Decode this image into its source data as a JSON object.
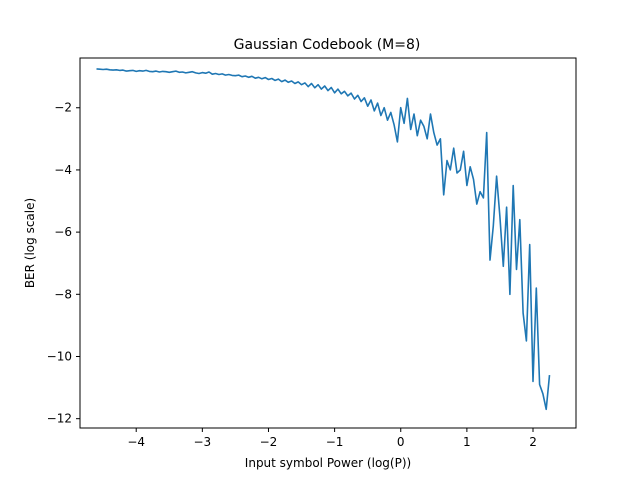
{
  "chart_data": {
    "type": "line",
    "title": "Gaussian Codebook (M=8)",
    "xlabel": "Input symbol Power (log(P))",
    "ylabel": "BER (log scale)",
    "xlim": [
      -4.85,
      2.65
    ],
    "ylim": [
      -12.3,
      -0.4
    ],
    "xticks": [
      -4,
      -3,
      -2,
      -1,
      0,
      1,
      2
    ],
    "xtick_labels": [
      "−4",
      "−3",
      "−2",
      "−1",
      "0",
      "1",
      "2"
    ],
    "yticks": [
      -12,
      -10,
      -8,
      -6,
      -4,
      -2
    ],
    "ytick_labels": [
      "−12",
      "−10",
      "−8",
      "−6",
      "−4",
      "−2"
    ],
    "grid": false,
    "colors": {
      "series": "#1f77b4"
    },
    "series": [
      {
        "points": [
          [
            -4.6,
            -0.75
          ],
          [
            -4.55,
            -0.76
          ],
          [
            -4.5,
            -0.77
          ],
          [
            -4.45,
            -0.76
          ],
          [
            -4.4,
            -0.78
          ],
          [
            -4.35,
            -0.79
          ],
          [
            -4.3,
            -0.78
          ],
          [
            -4.25,
            -0.8
          ],
          [
            -4.2,
            -0.79
          ],
          [
            -4.15,
            -0.82
          ],
          [
            -4.1,
            -0.81
          ],
          [
            -4.05,
            -0.8
          ],
          [
            -4.0,
            -0.83
          ],
          [
            -3.95,
            -0.81
          ],
          [
            -3.9,
            -0.82
          ],
          [
            -3.85,
            -0.8
          ],
          [
            -3.8,
            -0.83
          ],
          [
            -3.75,
            -0.84
          ],
          [
            -3.7,
            -0.82
          ],
          [
            -3.65,
            -0.85
          ],
          [
            -3.6,
            -0.83
          ],
          [
            -3.55,
            -0.84
          ],
          [
            -3.5,
            -0.86
          ],
          [
            -3.45,
            -0.84
          ],
          [
            -3.4,
            -0.82
          ],
          [
            -3.35,
            -0.86
          ],
          [
            -3.3,
            -0.85
          ],
          [
            -3.25,
            -0.88
          ],
          [
            -3.2,
            -0.86
          ],
          [
            -3.15,
            -0.84
          ],
          [
            -3.1,
            -0.88
          ],
          [
            -3.05,
            -0.9
          ],
          [
            -3.0,
            -0.87
          ],
          [
            -2.95,
            -0.89
          ],
          [
            -2.9,
            -0.85
          ],
          [
            -2.85,
            -0.92
          ],
          [
            -2.8,
            -0.9
          ],
          [
            -2.75,
            -0.93
          ],
          [
            -2.7,
            -0.91
          ],
          [
            -2.65,
            -0.95
          ],
          [
            -2.6,
            -0.93
          ],
          [
            -2.55,
            -0.96
          ],
          [
            -2.5,
            -0.97
          ],
          [
            -2.45,
            -0.95
          ],
          [
            -2.4,
            -1.0
          ],
          [
            -2.35,
            -0.98
          ],
          [
            -2.3,
            -1.02
          ],
          [
            -2.25,
            -0.99
          ],
          [
            -2.2,
            -1.05
          ],
          [
            -2.15,
            -1.02
          ],
          [
            -2.1,
            -1.07
          ],
          [
            -2.05,
            -1.03
          ],
          [
            -2.0,
            -1.09
          ],
          [
            -1.95,
            -1.06
          ],
          [
            -1.9,
            -1.12
          ],
          [
            -1.85,
            -1.08
          ],
          [
            -1.8,
            -1.16
          ],
          [
            -1.75,
            -1.11
          ],
          [
            -1.7,
            -1.18
          ],
          [
            -1.65,
            -1.14
          ],
          [
            -1.6,
            -1.22
          ],
          [
            -1.55,
            -1.17
          ],
          [
            -1.5,
            -1.26
          ],
          [
            -1.45,
            -1.2
          ],
          [
            -1.4,
            -1.32
          ],
          [
            -1.35,
            -1.22
          ],
          [
            -1.3,
            -1.36
          ],
          [
            -1.25,
            -1.26
          ],
          [
            -1.2,
            -1.4
          ],
          [
            -1.15,
            -1.3
          ],
          [
            -1.1,
            -1.45
          ],
          [
            -1.05,
            -1.35
          ],
          [
            -1.0,
            -1.52
          ],
          [
            -0.95,
            -1.4
          ],
          [
            -0.9,
            -1.55
          ],
          [
            -0.85,
            -1.47
          ],
          [
            -0.8,
            -1.62
          ],
          [
            -0.75,
            -1.53
          ],
          [
            -0.7,
            -1.72
          ],
          [
            -0.65,
            -1.6
          ],
          [
            -0.6,
            -1.8
          ],
          [
            -0.55,
            -1.68
          ],
          [
            -0.5,
            -1.95
          ],
          [
            -0.45,
            -1.75
          ],
          [
            -0.4,
            -2.1
          ],
          [
            -0.35,
            -1.85
          ],
          [
            -0.3,
            -2.25
          ],
          [
            -0.25,
            -2.0
          ],
          [
            -0.2,
            -2.4
          ],
          [
            -0.15,
            -2.15
          ],
          [
            -0.1,
            -2.55
          ],
          [
            -0.05,
            -3.1
          ],
          [
            0.0,
            -2.0
          ],
          [
            0.05,
            -2.5
          ],
          [
            0.1,
            -1.7
          ],
          [
            0.15,
            -2.7
          ],
          [
            0.2,
            -2.2
          ],
          [
            0.25,
            -2.9
          ],
          [
            0.3,
            -2.4
          ],
          [
            0.35,
            -2.6
          ],
          [
            0.4,
            -3.0
          ],
          [
            0.45,
            -2.2
          ],
          [
            0.5,
            -2.8
          ],
          [
            0.55,
            -3.2
          ],
          [
            0.6,
            -3.0
          ],
          [
            0.65,
            -4.8
          ],
          [
            0.7,
            -3.7
          ],
          [
            0.75,
            -4.0
          ],
          [
            0.8,
            -3.3
          ],
          [
            0.85,
            -4.1
          ],
          [
            0.9,
            -4.0
          ],
          [
            0.95,
            -3.4
          ],
          [
            1.0,
            -4.5
          ],
          [
            1.05,
            -3.9
          ],
          [
            1.1,
            -4.3
          ],
          [
            1.15,
            -5.1
          ],
          [
            1.2,
            -4.7
          ],
          [
            1.25,
            -4.9
          ],
          [
            1.3,
            -2.8
          ],
          [
            1.35,
            -6.9
          ],
          [
            1.4,
            -5.8
          ],
          [
            1.45,
            -4.2
          ],
          [
            1.5,
            -5.5
          ],
          [
            1.55,
            -7.1
          ],
          [
            1.6,
            -5.2
          ],
          [
            1.65,
            -8.0
          ],
          [
            1.7,
            -4.5
          ],
          [
            1.75,
            -7.2
          ],
          [
            1.8,
            -5.6
          ],
          [
            1.85,
            -8.6
          ],
          [
            1.9,
            -9.5
          ],
          [
            1.95,
            -6.4
          ],
          [
            2.0,
            -10.8
          ],
          [
            2.05,
            -7.8
          ],
          [
            2.1,
            -10.9
          ],
          [
            2.15,
            -11.2
          ],
          [
            2.2,
            -11.7
          ],
          [
            2.25,
            -10.6
          ]
        ]
      }
    ]
  }
}
